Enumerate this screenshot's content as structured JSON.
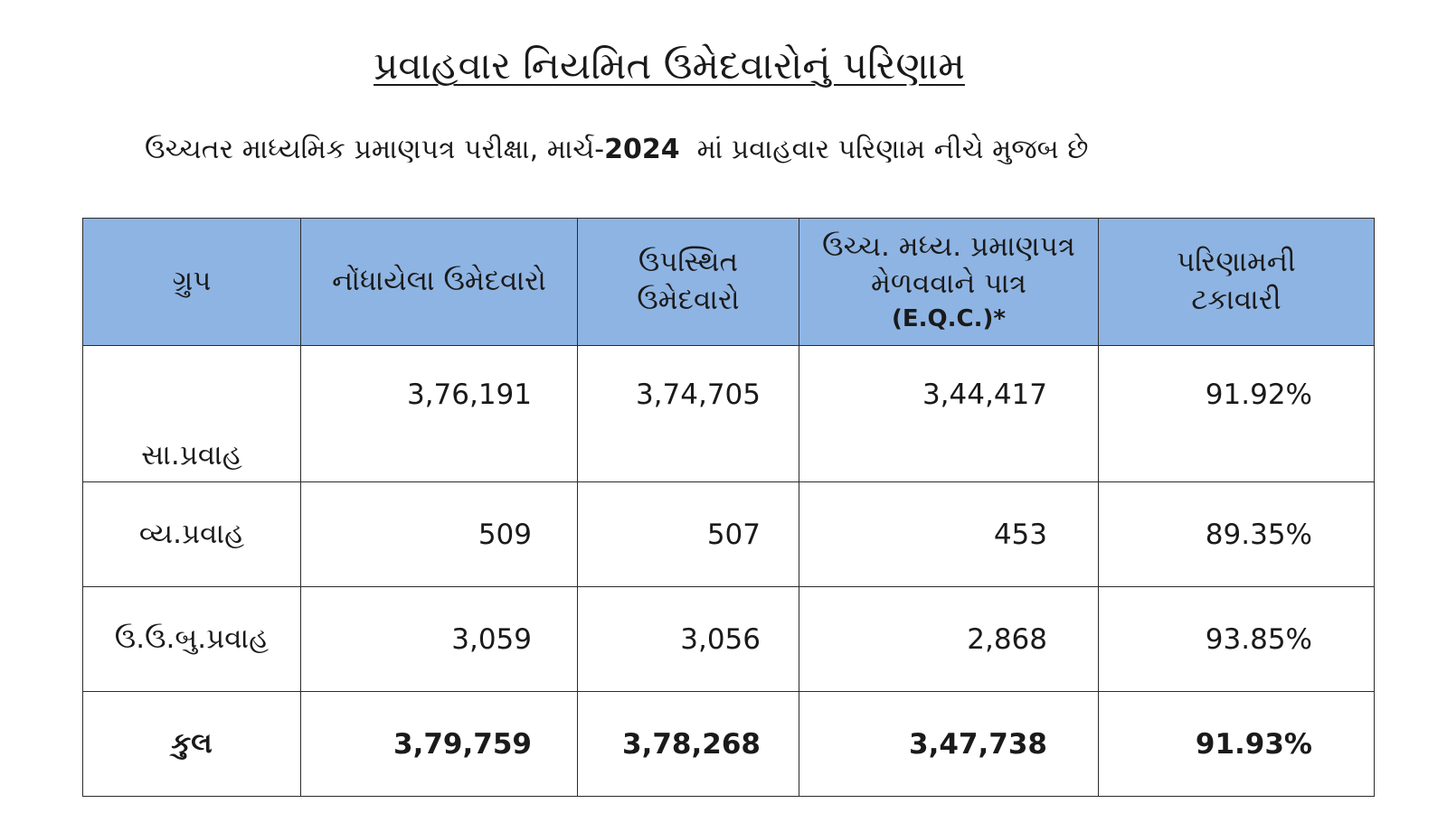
{
  "title": "પ્રવાહવાર નિયમિત ઉમેદવારોનું પરિણામ",
  "subtitle": {
    "prefix": "ઉચ્ચતર માધ્યમિક પ્રમાણપત્ર પરીક્ષા, માર્ચ-",
    "year": "2024",
    "suffix": "  માં પ્રવાહવાર પરિણામ નીચે મુજબ છે"
  },
  "table": {
    "headers": {
      "group": "ગ્રુપ",
      "registered": "નોંધાયેલા ઉમેદવારો",
      "present_line1": "ઉપસ્થિત",
      "present_line2": "ઉમેદવારો",
      "eligible_line1": "ઉચ્ચ. મધ્ય. પ્રમાણપત્ર",
      "eligible_line2": "મેળવવાને પાત્ર",
      "eligible_line3": "(E.Q.C.)*",
      "percent_line1": "પરિણામની",
      "percent_line2": "ટકાવારી"
    },
    "rows": [
      {
        "group": "સા.પ્રવાહ",
        "registered": "3,76,191",
        "present": "3,74,705",
        "eligible": "3,44,417",
        "percent": "91.92%"
      },
      {
        "group": "વ્ય.પ્રવાહ",
        "registered": "509",
        "present": "507",
        "eligible": "453",
        "percent": "89.35%"
      },
      {
        "group": "ઉ.ઉ.બુ.પ્રવાહ",
        "registered": "3,059",
        "present": "3,056",
        "eligible": "2,868",
        "percent": "93.85%"
      }
    ],
    "total": {
      "group": "કુલ",
      "registered": "3,79,759",
      "present": "3,78,268",
      "eligible": "3,47,738",
      "percent": "91.93%"
    }
  }
}
